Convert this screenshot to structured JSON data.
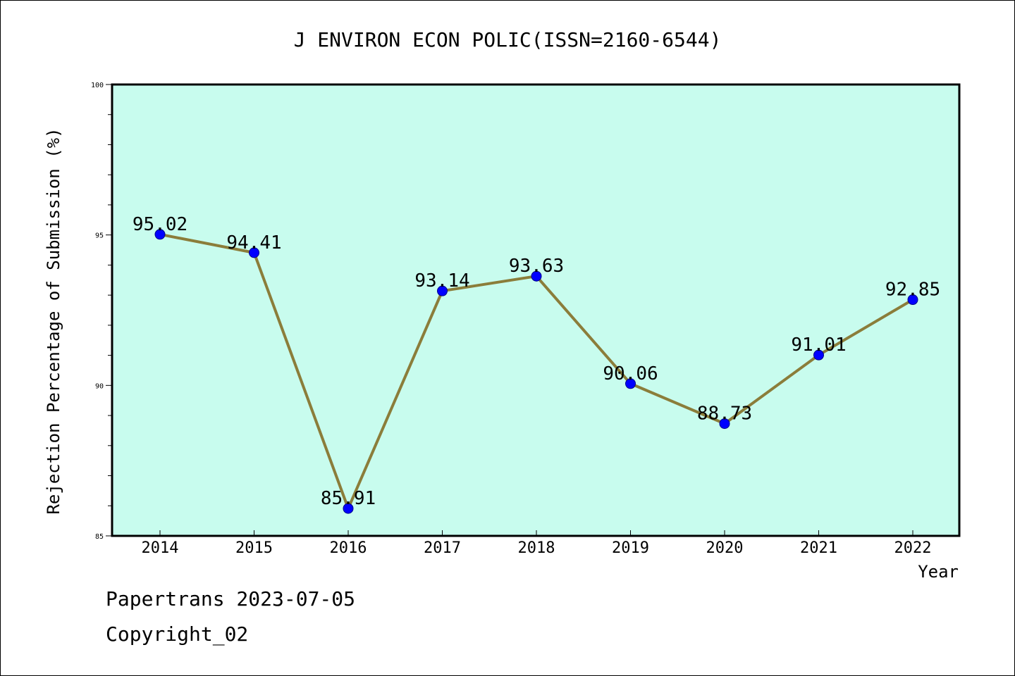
{
  "chart_data": {
    "type": "line",
    "title": "J ENVIRON ECON POLIC(ISSN=2160-6544)",
    "xlabel": "Year",
    "ylabel": "Rejection Percentage of Submission (%)",
    "categories": [
      "2014",
      "2015",
      "2016",
      "2017",
      "2018",
      "2019",
      "2020",
      "2021",
      "2022"
    ],
    "series": [
      {
        "values": [
          95.02,
          94.41,
          85.91,
          93.14,
          93.63,
          90.06,
          88.73,
          91.01,
          92.85
        ],
        "data_labels": [
          "95.02",
          "94.41",
          "85.91",
          "93.14",
          "93.63",
          "90.06",
          "88.73",
          "91.01",
          "92.85"
        ]
      }
    ],
    "ylim": [
      85,
      100
    ],
    "yticks": [
      "85",
      "90",
      "95",
      "100"
    ],
    "grid": false,
    "colors": {
      "plot_background": "#c8fcee",
      "line": "#8b7d3a",
      "marker": "#0000ff"
    }
  },
  "footer": {
    "line1": "Papertrans 2023-07-05",
    "line2": "Copyright_02"
  }
}
